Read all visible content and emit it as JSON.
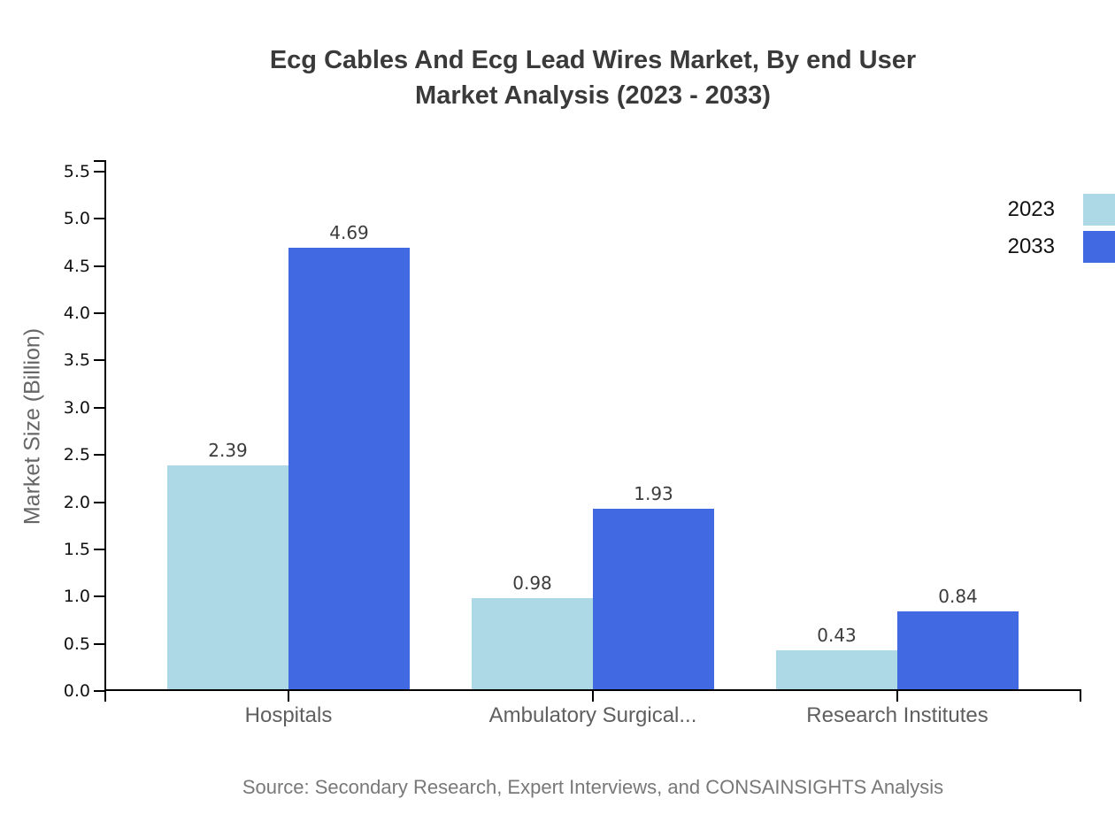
{
  "title": {
    "line1": "Ecg Cables And Ecg Lead Wires Market, By end User",
    "line2": "Market Analysis (2023 - 2033)"
  },
  "source": "Source: Secondary Research, Expert Interviews, and CONSAINSIGHTS Analysis",
  "chart_data": {
    "type": "bar",
    "title": "Ecg Cables And Ecg Lead Wires Market, By end User Market Analysis (2023 - 2033)",
    "categories": [
      "Hospitals",
      "Ambulatory Surgical...",
      "Research Institutes"
    ],
    "series": [
      {
        "name": "2023",
        "color": "#ADD8E6",
        "values": [
          2.39,
          0.98,
          0.43
        ]
      },
      {
        "name": "2033",
        "color": "#4169E1",
        "values": [
          4.69,
          1.93,
          0.84
        ]
      }
    ],
    "value_labels": [
      "2.39",
      "4.69",
      "0.98",
      "1.93",
      "0.43",
      "0.84"
    ],
    "xlabel": "",
    "ylabel": "Market Size (Billion)",
    "ylim": [
      0.0,
      5.5
    ],
    "yticks": [
      "0.0",
      "0.5",
      "1.0",
      "1.5",
      "2.0",
      "2.5",
      "3.0",
      "3.5",
      "4.0",
      "4.5",
      "5.0",
      "5.5"
    ],
    "grid": false,
    "legend_position": "upper-right-outside",
    "axis_color": "#000000"
  }
}
